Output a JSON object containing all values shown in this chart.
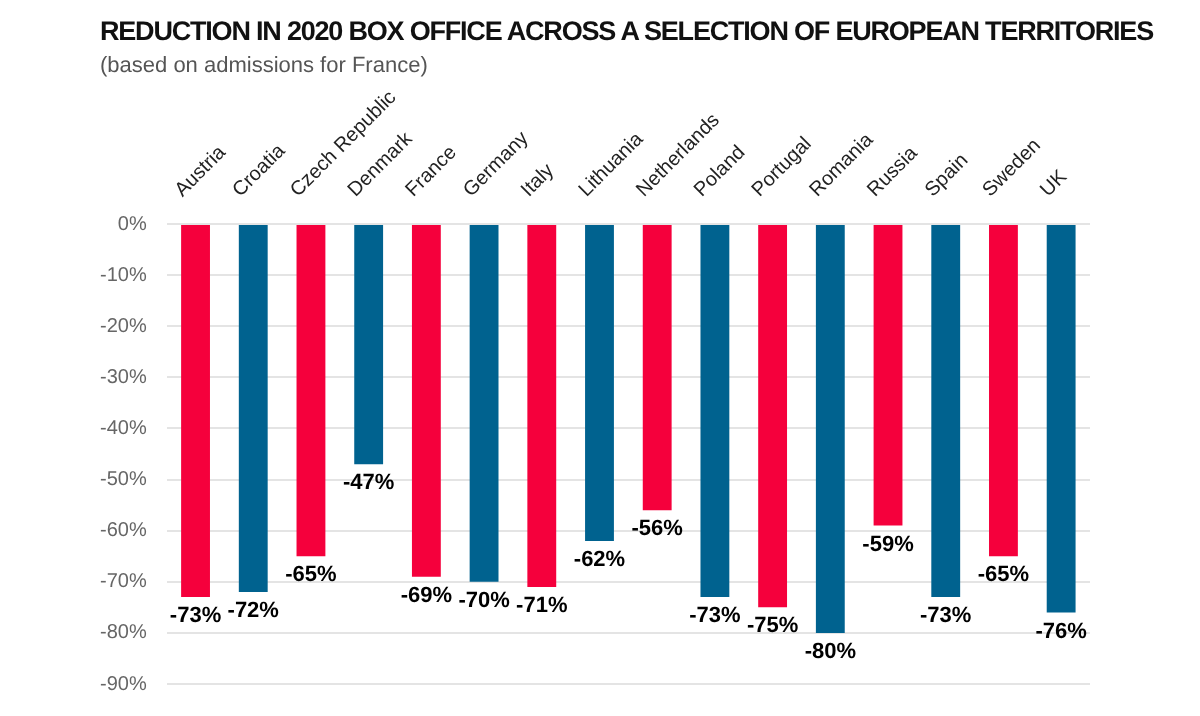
{
  "chart_data": {
    "type": "bar",
    "title": "REDUCTION IN 2020 BOX OFFICE ACROSS A SELECTION OF EUROPEAN TERRITORIES",
    "subtitle": "(based on admissions for France)",
    "categories": [
      "Austria",
      "Croatia",
      "Czech Republic",
      "Denmark",
      "France",
      "Germany",
      "Italy",
      "Lithuania",
      "Netherlands",
      "Poland",
      "Portugal",
      "Romania",
      "Russia",
      "Spain",
      "Sweden",
      "UK"
    ],
    "values": [
      -73,
      -72,
      -65,
      -47,
      -69,
      -70,
      -71,
      -62,
      -56,
      -73,
      -75,
      -80,
      -59,
      -73,
      -65,
      -76
    ],
    "value_labels": [
      "-73%",
      "-72%",
      "-65%",
      "-47%",
      "-69%",
      "-70%",
      "-71%",
      "-62%",
      "-56%",
      "-73%",
      "-75%",
      "-80%",
      "-59%",
      "-73%",
      "-65%",
      "-76%"
    ],
    "colors": [
      "#f5003c",
      "#00628f",
      "#f5003c",
      "#00628f",
      "#f5003c",
      "#00628f",
      "#f5003c",
      "#00628f",
      "#f5003c",
      "#00628f",
      "#f5003c",
      "#00628f",
      "#f5003c",
      "#00628f",
      "#f5003c",
      "#00628f"
    ],
    "ylim": [
      -90,
      0
    ],
    "yticks": [
      {
        "value": 0,
        "label": "0%"
      },
      {
        "value": -10,
        "label": "-10%"
      },
      {
        "value": -20,
        "label": "-20%"
      },
      {
        "value": -30,
        "label": "-30%"
      },
      {
        "value": -40,
        "label": "-40%"
      },
      {
        "value": -50,
        "label": "-50%"
      },
      {
        "value": -60,
        "label": "-60%"
      },
      {
        "value": -70,
        "label": "-70%"
      },
      {
        "value": -80,
        "label": "-80%"
      },
      {
        "value": -90,
        "label": "-90%"
      }
    ],
    "grid": "y",
    "legend": false
  }
}
